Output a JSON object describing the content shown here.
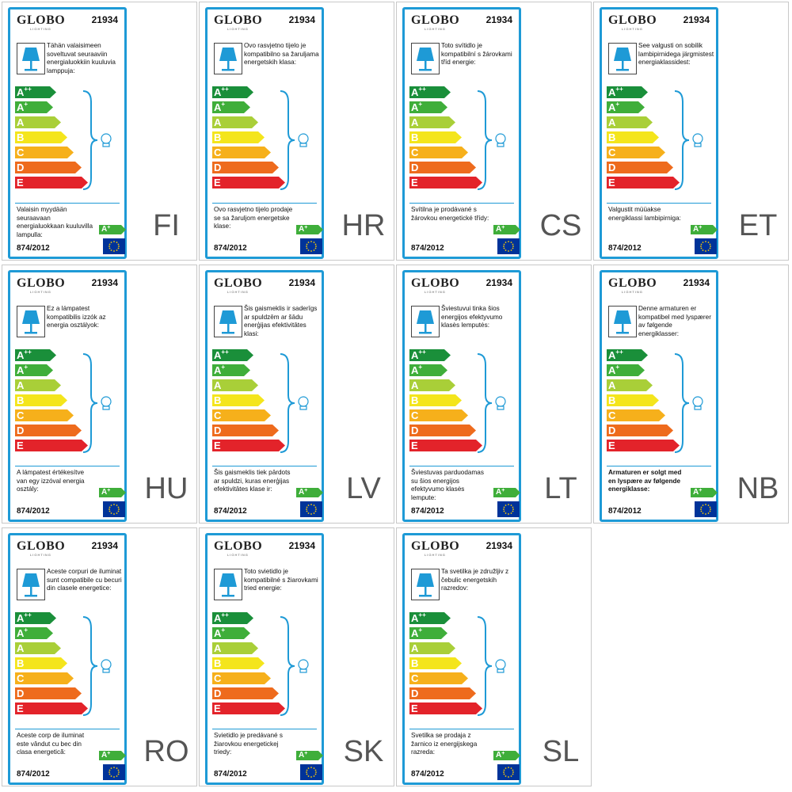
{
  "brand": "GLOBO",
  "brand_sub": "LIGHTING",
  "model": "21934",
  "regulation": "874/2012",
  "scale_classes": [
    {
      "letter": "A",
      "sup": "++",
      "color": "#1a8f3a"
    },
    {
      "letter": "A",
      "sup": "+",
      "color": "#3fae3a"
    },
    {
      "letter": "A",
      "sup": "",
      "color": "#a9cf38"
    },
    {
      "letter": "B",
      "sup": "",
      "color": "#f4e51c"
    },
    {
      "letter": "C",
      "sup": "",
      "color": "#f6b01b"
    },
    {
      "letter": "D",
      "sup": "",
      "color": "#ee6b1d"
    },
    {
      "letter": "E",
      "sup": "",
      "color": "#e3232a"
    }
  ],
  "bulb_class": {
    "letter": "A",
    "sup": "+"
  },
  "labels": [
    {
      "lang": "FI",
      "intro": "Tähän valaisimeen soveltuvat seuraaviin energialuokkiin kuuluvia lamppuja:",
      "footer": "Valaisin myydään seuraavaan energialuokkaan kuuluvilla lampulla:",
      "footer_bold": false
    },
    {
      "lang": "HR",
      "intro": "Ovo rasvjetno tijelo je kompatibilno sa žaruljama energetskih klasa:",
      "footer": "Ovo rasvjetno tijelo prodaje se sa žaruljom energetske klase:",
      "footer_bold": false
    },
    {
      "lang": "CS",
      "intro": "Toto svítidlo je kompatibilní s žárovkami tříd energie:",
      "footer": "Svítilna je prodávané s žárovkou energetické třídy:",
      "footer_bold": false
    },
    {
      "lang": "ET",
      "intro": "See valgusti on sobilik lambipirnidega järgmistest energiaklassidest:",
      "footer": "Valgustit müüakse energiklassi lambipirniga:",
      "footer_bold": false
    },
    {
      "lang": "HU",
      "intro": "Ez a lámpatest kompatibilis izzók az energia osztályok:",
      "footer": "A lámpatest értékesítve van egy izzóval energia osztály:",
      "footer_bold": false
    },
    {
      "lang": "LV",
      "intro": "Šis gaismeklis ir saderīgs ar spuldzēm ar šādu enerģijas efektivitātes klasi:",
      "footer": "Šis gaismeklis tiek pārdots ar spuldzi, kuras enerģijas efektivitātes klase ir:",
      "footer_bold": false
    },
    {
      "lang": "LT",
      "intro": "Šviestuvui tinka šios energijos efektyvumo klasės lemputės:",
      "footer": "Šviestuvas parduodamas su šios energijos efektyvumo klasės lempute:",
      "footer_bold": false
    },
    {
      "lang": "NB",
      "intro": "Denne armaturen er kompatibel med lyspærer av følgende energiklasser:",
      "footer": "Armaturen er solgt med en lyspære av følgende energiklasse:",
      "footer_bold": true
    },
    {
      "lang": "RO",
      "intro": "Aceste corpuri de iluminat sunt compatibile cu becuri din clasele energetice:",
      "footer": "Aceste corp de iluminat este vândut cu bec din clasa energetică:",
      "footer_bold": false
    },
    {
      "lang": "SK",
      "intro": "Toto svietidlo je kompatibilné s žiarovkami tried energie:",
      "footer": "Svietidlo je predávané s žiarovkou energetickej triedy:",
      "footer_bold": false
    },
    {
      "lang": "SL",
      "intro": "Ta svetilka je združljiv z čebulic energetskih razredov:",
      "footer": "Svetilka se prodaja z žarnico iz energijskega razreda:",
      "footer_bold": false
    }
  ]
}
